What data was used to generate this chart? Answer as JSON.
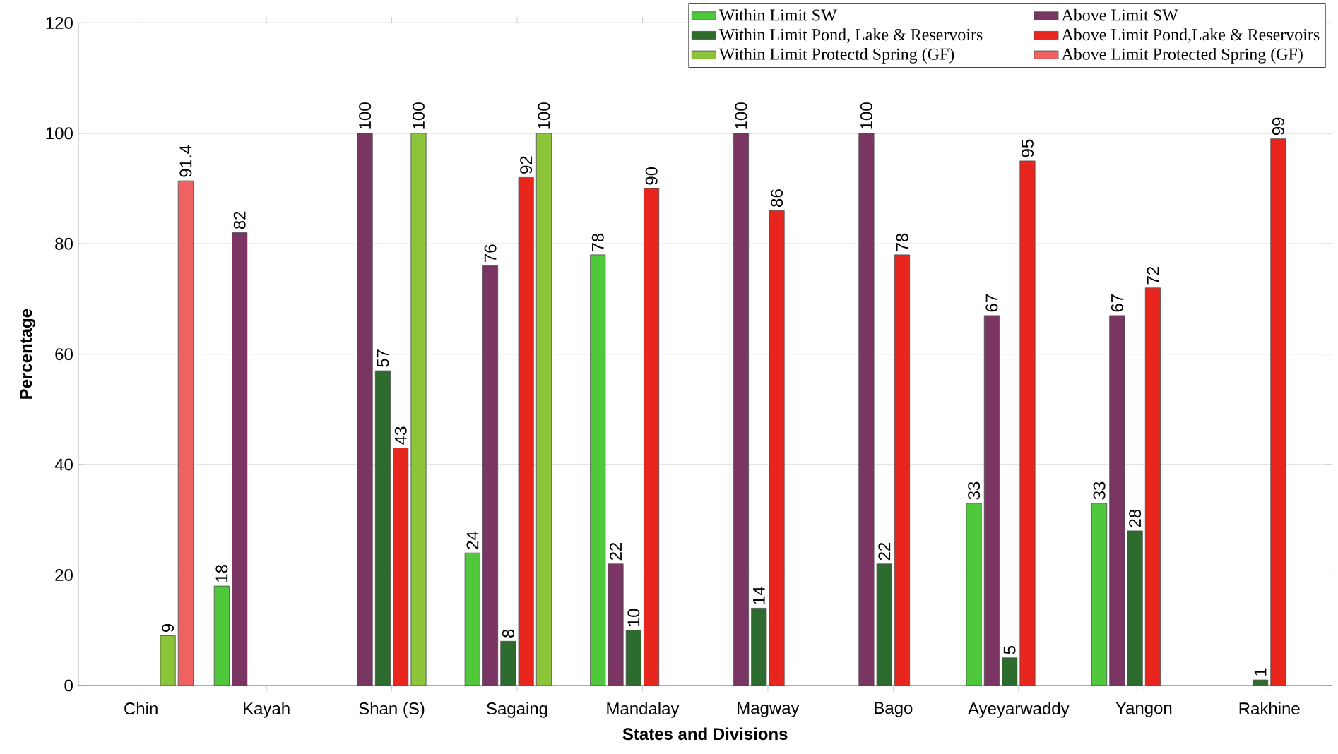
{
  "chart_data": {
    "type": "bar",
    "xlabel": "States and Divisions",
    "ylabel": "Percentage",
    "categories": [
      "Chin",
      "Kayah",
      "Shan (S)",
      "Sagaing",
      "Mandalay",
      "Magway",
      "Bago",
      "Ayeyarwaddy",
      "Yangon",
      "Rakhine"
    ],
    "series": [
      {
        "name": "Within Limit SW",
        "color": "#4fc83c",
        "values": [
          null,
          18,
          null,
          24,
          78,
          null,
          null,
          33,
          33,
          null
        ]
      },
      {
        "name": "Above Limit SW",
        "color": "#7a3563",
        "values": [
          null,
          82,
          100,
          76,
          22,
          100,
          100,
          67,
          67,
          null
        ]
      },
      {
        "name": "Within Limit Pond, Lake & Reservoirs",
        "color": "#2e6b2e",
        "values": [
          null,
          null,
          57,
          8,
          10,
          14,
          22,
          5,
          28,
          1
        ]
      },
      {
        "name": "Above Limit Pond,Lake & Reservoirs",
        "color": "#e8261e",
        "values": [
          null,
          null,
          43,
          92,
          90,
          86,
          78,
          95,
          72,
          99
        ]
      },
      {
        "name": "Within Limit Protectd Spring (GF)",
        "color": "#8cc43a",
        "values": [
          9,
          null,
          100,
          100,
          null,
          null,
          null,
          null,
          null,
          null
        ]
      },
      {
        "name": "Above Limit Protected Spring (GF)",
        "color": "#f06262",
        "values": [
          91.4,
          null,
          null,
          null,
          null,
          null,
          null,
          null,
          null,
          null
        ]
      }
    ],
    "ylim": [
      0,
      120
    ],
    "yticks": [
      0,
      20,
      40,
      60,
      80,
      100,
      120
    ],
    "grid": "y",
    "legend": "top right",
    "data_labels": true
  }
}
